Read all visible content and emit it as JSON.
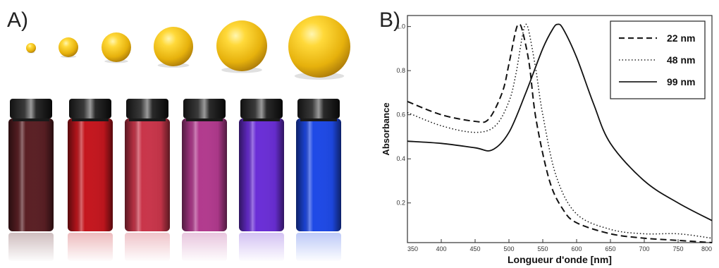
{
  "panels": {
    "a_label": "A)",
    "b_label": "B)"
  },
  "illustration": {
    "sphere_color": "#f2c21a",
    "vials": [
      {
        "color": "#5a1f24"
      },
      {
        "color": "#c4161e"
      },
      {
        "color": "#c9354a"
      },
      {
        "color": "#b23a8e"
      },
      {
        "color": "#6a2ed6"
      },
      {
        "color": "#1e49e6"
      }
    ]
  },
  "chart_data": {
    "type": "line",
    "xlabel": "Longueur d'onde [nm]",
    "ylabel": "Absorbance",
    "xlim": [
      350,
      800
    ],
    "ylim": [
      0.02,
      1.05
    ],
    "x_ticks": [
      350,
      400,
      450,
      500,
      550,
      600,
      650,
      700,
      750,
      800
    ],
    "y_ticks": [
      0.2,
      0.4,
      0.6,
      0.8,
      1.0
    ],
    "y_tick_labels": [
      "0.2",
      "0.4",
      "0.6",
      "0.8",
      "1.0"
    ],
    "legend_position": "top-right",
    "series": [
      {
        "name": "22 nm",
        "style": "dashed",
        "x": [
          350,
          400,
          450,
          470,
          490,
          500,
          510,
          515,
          520,
          530,
          540,
          560,
          580,
          600,
          650,
          700,
          750,
          800
        ],
        "y": [
          0.66,
          0.6,
          0.57,
          0.58,
          0.7,
          0.83,
          0.98,
          1.01,
          0.98,
          0.83,
          0.58,
          0.3,
          0.17,
          0.11,
          0.06,
          0.04,
          0.03,
          0.02
        ]
      },
      {
        "name": "48 nm",
        "style": "dotted",
        "x": [
          350,
          400,
          450,
          480,
          500,
          510,
          520,
          525,
          530,
          540,
          550,
          570,
          600,
          650,
          700,
          750,
          800
        ],
        "y": [
          0.61,
          0.55,
          0.52,
          0.55,
          0.66,
          0.78,
          0.96,
          1.01,
          0.97,
          0.8,
          0.6,
          0.32,
          0.15,
          0.08,
          0.06,
          0.06,
          0.04
        ]
      },
      {
        "name": "99 nm",
        "style": "solid",
        "x": [
          350,
          400,
          450,
          475,
          500,
          525,
          550,
          565,
          572,
          580,
          600,
          625,
          650,
          700,
          750,
          800
        ],
        "y": [
          0.48,
          0.47,
          0.45,
          0.44,
          0.52,
          0.7,
          0.9,
          0.99,
          1.01,
          0.99,
          0.86,
          0.65,
          0.47,
          0.3,
          0.2,
          0.12
        ]
      }
    ]
  }
}
